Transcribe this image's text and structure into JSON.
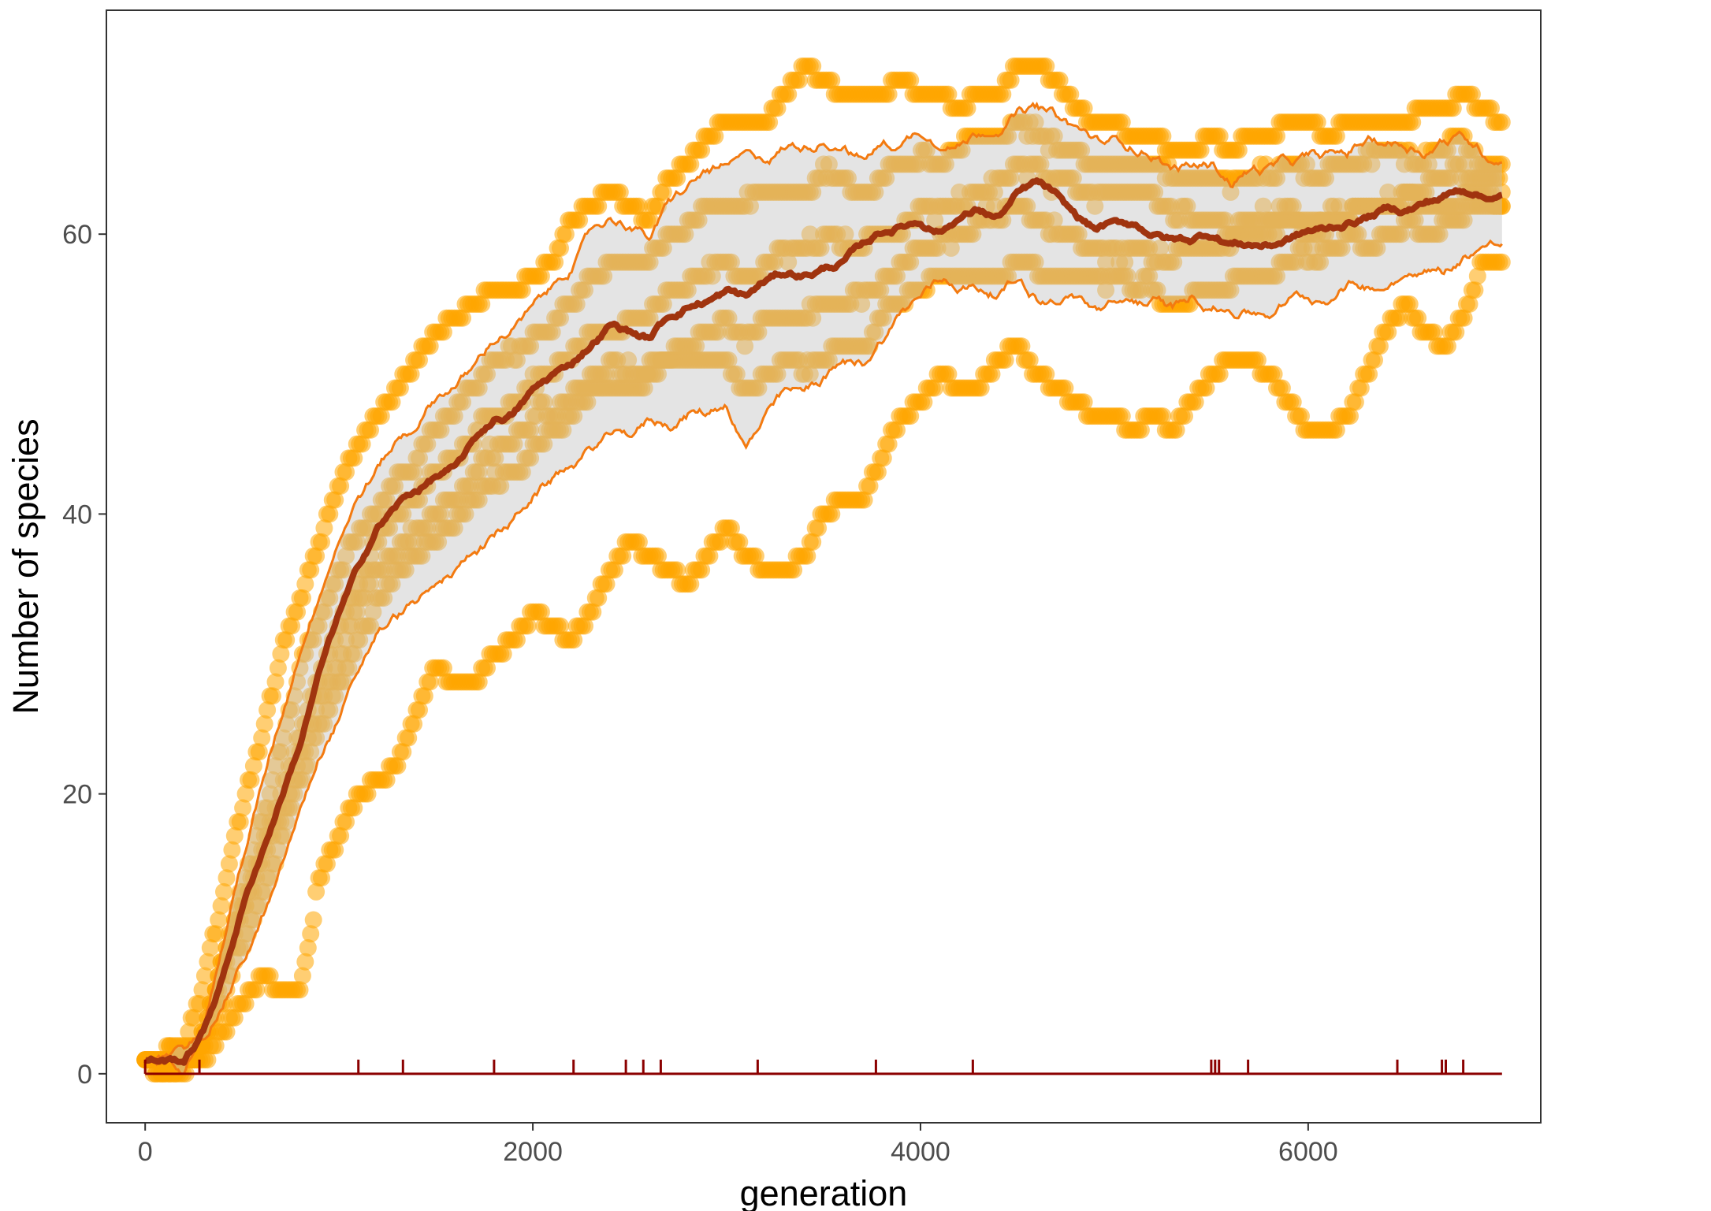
{
  "chart_data": {
    "type": "line",
    "title": "",
    "xlabel": "generation",
    "ylabel": "Number of species",
    "xlim": [
      -200,
      7200
    ],
    "ylim": [
      -3.5,
      76
    ],
    "x_ticks": [
      0,
      2000,
      4000,
      6000
    ],
    "y_ticks": [
      0,
      20,
      40,
      60
    ],
    "grid": false,
    "legend": "none",
    "colors": {
      "mean": "#A0340F",
      "band_fill": "#C4C4C4",
      "band_edge": "#F37A10",
      "points": "#FFA500",
      "rug": "#8B0000",
      "axis_text": "#4d4d4d",
      "panel_border": "#333333"
    },
    "series": [
      {
        "role": "mean",
        "x": [
          0,
          200,
          300,
          400,
          500,
          600,
          700,
          800,
          900,
          1000,
          1100,
          1200,
          1300,
          1400,
          1500,
          1600,
          1700,
          1800,
          1900,
          2000,
          2100,
          2200,
          2300,
          2400,
          2500,
          2600,
          2700,
          2800,
          2900,
          3000,
          3100,
          3200,
          3300,
          3400,
          3500,
          3600,
          3700,
          3800,
          3900,
          4000,
          4100,
          4200,
          4300,
          4400,
          4500,
          4600,
          4700,
          4800,
          4900,
          5000,
          5100,
          5200,
          5300,
          5400,
          5500,
          5600,
          5700,
          5800,
          5900,
          6000,
          6100,
          6200,
          6300,
          6400,
          6500,
          6600,
          6700,
          6800,
          6900,
          7000
        ],
        "y": [
          1,
          1,
          3,
          7,
          12,
          16,
          20,
          24,
          29,
          33,
          36,
          39,
          40.5,
          41.5,
          42.5,
          43,
          45,
          46.5,
          47,
          48.5,
          49.5,
          50.5,
          52,
          53.5,
          53,
          52.5,
          54,
          55,
          55.5,
          56,
          55.5,
          56.5,
          57,
          57,
          57.5,
          58,
          59,
          60,
          60.5,
          61,
          60.5,
          61.5,
          62,
          61.5,
          63,
          63.5,
          62.5,
          61,
          60,
          60.5,
          60.5,
          60,
          59.5,
          59.5,
          60,
          59.5,
          59.5,
          59.5,
          60,
          60.5,
          60.5,
          61,
          61.5,
          62,
          62,
          62.5,
          63,
          63.5,
          63,
          63
        ]
      },
      {
        "role": "band-upper",
        "x": [
          0,
          200,
          300,
          400,
          500,
          600,
          700,
          800,
          900,
          1000,
          1100,
          1200,
          1300,
          1400,
          1500,
          1600,
          1700,
          1800,
          1900,
          2000,
          2100,
          2200,
          2300,
          2400,
          2500,
          2600,
          2700,
          2800,
          2900,
          3000,
          3100,
          3200,
          3300,
          3400,
          3500,
          3600,
          3700,
          3800,
          3900,
          4000,
          4100,
          4200,
          4300,
          4400,
          4500,
          4600,
          4700,
          4800,
          4900,
          5000,
          5100,
          5200,
          5300,
          5400,
          5500,
          5600,
          5700,
          5800,
          5900,
          6000,
          6100,
          6200,
          6300,
          6400,
          6500,
          6600,
          6700,
          6800,
          6900,
          7000
        ],
        "y": [
          1,
          1,
          4,
          10,
          16,
          21,
          26,
          31,
          35,
          39,
          42,
          44,
          46,
          47,
          49,
          50,
          51,
          53,
          54,
          55,
          56,
          58,
          60,
          61,
          61,
          60,
          62,
          63,
          64,
          64,
          65,
          65,
          66,
          66,
          67,
          67,
          66,
          67,
          67,
          68,
          67,
          67,
          68,
          68,
          69,
          69,
          68,
          67,
          66,
          66,
          66,
          66,
          65,
          65,
          65,
          64,
          65,
          65,
          65,
          65,
          65,
          65,
          66,
          66,
          66,
          66,
          67,
          67,
          66,
          66
        ]
      },
      {
        "role": "band-lower",
        "x": [
          0,
          200,
          300,
          400,
          500,
          600,
          700,
          800,
          900,
          1000,
          1100,
          1200,
          1300,
          1400,
          1500,
          1600,
          1700,
          1800,
          1900,
          2000,
          2100,
          2200,
          2300,
          2400,
          2500,
          2600,
          2700,
          2800,
          2900,
          3000,
          3100,
          3200,
          3300,
          3400,
          3500,
          3600,
          3700,
          3800,
          3900,
          4000,
          4100,
          4200,
          4300,
          4400,
          4500,
          4600,
          4700,
          4800,
          4900,
          5000,
          5100,
          5200,
          5300,
          5400,
          5500,
          5600,
          5700,
          5800,
          5900,
          6000,
          6100,
          6200,
          6300,
          6400,
          6500,
          6600,
          6700,
          6800,
          6900,
          7000
        ],
        "y": [
          1,
          1,
          2,
          5,
          8,
          11,
          14,
          18,
          22,
          25,
          28,
          31,
          32,
          33,
          34,
          35,
          37,
          38,
          39,
          41,
          42,
          43,
          44,
          45,
          45,
          46,
          46,
          47,
          47,
          48,
          45,
          47,
          48,
          48,
          49,
          50,
          50,
          52,
          54,
          55,
          56,
          56,
          56,
          56,
          57,
          56,
          56,
          56,
          55,
          55,
          55,
          55,
          54,
          55,
          55,
          55,
          55,
          55,
          56,
          56,
          56,
          57,
          57,
          57,
          58,
          58,
          58,
          59,
          60,
          60
        ]
      },
      {
        "role": "replicate-min",
        "x": [
          0,
          200,
          300,
          400,
          500,
          600,
          700,
          800,
          900,
          1000,
          1100,
          1200,
          1300,
          1400,
          1500,
          1600,
          1700,
          1800,
          1900,
          2000,
          2100,
          2200,
          2300,
          2400,
          2500,
          2600,
          2700,
          2800,
          2900,
          3000,
          3100,
          3200,
          3300,
          3400,
          3500,
          3600,
          3700,
          3800,
          3900,
          4000,
          4100,
          4200,
          4300,
          4400,
          4500,
          4600,
          4700,
          4800,
          4900,
          5000,
          5100,
          5200,
          5300,
          5400,
          5500,
          5600,
          5700,
          5800,
          5900,
          6000,
          6100,
          6200,
          6300,
          6400,
          6500,
          6600,
          6700,
          6800,
          6900,
          7000
        ],
        "y": [
          1,
          1,
          1,
          3,
          5,
          7,
          6,
          6,
          14,
          17,
          20,
          21,
          22,
          26,
          29,
          28,
          28,
          30,
          31,
          33,
          32,
          31,
          33,
          36,
          38,
          37,
          36,
          35,
          37,
          39,
          37,
          36,
          36,
          37,
          40,
          41,
          41,
          44,
          47,
          48,
          50,
          49,
          49,
          51,
          52,
          50,
          49,
          48,
          47,
          47,
          46,
          47,
          46,
          48,
          50,
          51,
          51,
          50,
          48,
          46,
          46,
          47,
          50,
          53,
          55,
          53,
          52,
          54,
          58,
          58
        ]
      },
      {
        "role": "replicate-max",
        "x": [
          0,
          200,
          300,
          400,
          500,
          600,
          700,
          800,
          900,
          1000,
          1100,
          1200,
          1300,
          1400,
          1500,
          1600,
          1700,
          1800,
          1900,
          2000,
          2100,
          2200,
          2300,
          2400,
          2500,
          2600,
          2700,
          2800,
          2900,
          3000,
          3100,
          3200,
          3300,
          3400,
          3500,
          3600,
          3700,
          3800,
          3900,
          4000,
          4100,
          4200,
          4300,
          4400,
          4500,
          4600,
          4700,
          4800,
          4900,
          5000,
          5100,
          5200,
          5300,
          5400,
          5500,
          5600,
          5700,
          5800,
          5900,
          6000,
          6100,
          6200,
          6300,
          6400,
          6500,
          6600,
          6700,
          6800,
          6900,
          7000
        ],
        "y": [
          1,
          2,
          6,
          13,
          19,
          24,
          30,
          34,
          38,
          42,
          45,
          47,
          49,
          51,
          53,
          54,
          55,
          56,
          56,
          57,
          58,
          61,
          62,
          63,
          62,
          61,
          64,
          65,
          67,
          68,
          68,
          68,
          70,
          72,
          71,
          70,
          70,
          70,
          71,
          70,
          70,
          69,
          70,
          70,
          72,
          72,
          71,
          69,
          68,
          68,
          67,
          67,
          66,
          66,
          67,
          66,
          67,
          67,
          68,
          68,
          67,
          68,
          68,
          68,
          68,
          69,
          69,
          70,
          69,
          68
        ]
      }
    ],
    "rug_x": [
      0,
      280,
      1100,
      1330,
      1800,
      2210,
      2480,
      2570,
      2660,
      3160,
      3770,
      4270,
      5500,
      5520,
      5540,
      5690,
      6460,
      6690,
      6710,
      6800
    ]
  }
}
